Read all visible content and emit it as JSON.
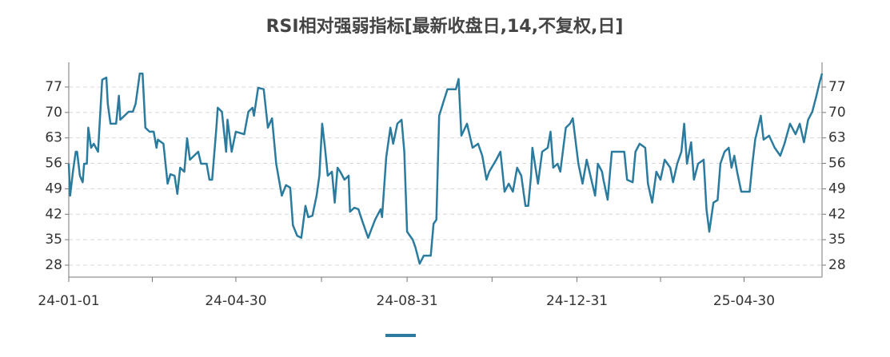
{
  "chart_data": {
    "type": "line",
    "title": "RSI相对强弱指标[最新收盘日,14,不复权,日]",
    "xlim": [
      "24-01-01",
      "25-06-25"
    ],
    "xticks": [
      "24-01-01",
      "24-04-30",
      "24-08-31",
      "24-12-31",
      "25-04-30"
    ],
    "ylim": [
      24.7,
      83.8
    ],
    "yticks": [
      28,
      35,
      42,
      49,
      56,
      63,
      70,
      77
    ],
    "grid": true,
    "right_axis": true,
    "series": [
      {
        "color": "#2b7b9e",
        "x": [
          "24-01-01",
          "24-01-02",
          "24-01-04",
          "24-01-06",
          "24-01-07",
          "24-01-09",
          "24-01-11",
          "24-01-12",
          "24-01-14",
          "24-01-15",
          "24-01-17",
          "24-01-19",
          "24-01-22",
          "24-01-25",
          "24-01-28",
          "24-01-29",
          "24-01-31",
          "24-02-04",
          "24-02-06",
          "24-02-07",
          "24-02-13",
          "24-02-16",
          "24-02-18",
          "24-02-21",
          "24-02-23",
          "24-02-25",
          "24-02-28",
          "24-03-02",
          "24-03-04",
          "24-03-05",
          "24-03-09",
          "24-03-12",
          "24-03-14",
          "24-03-17",
          "24-03-19",
          "24-03-21",
          "24-03-24",
          "24-03-26",
          "24-03-28",
          "24-03-31",
          "24-04-03",
          "24-04-05",
          "24-04-09",
          "24-04-11",
          "24-04-13",
          "24-04-16",
          "24-04-17",
          "24-04-20",
          "24-04-23",
          "24-04-24",
          "24-04-27",
          "24-04-30",
          "24-05-06",
          "24-05-09",
          "24-05-12",
          "24-05-13",
          "24-05-16",
          "24-05-20",
          "24-05-23",
          "24-05-26",
          "24-05-29",
          "24-06-02",
          "24-06-05",
          "24-06-08",
          "24-06-10",
          "24-06-13",
          "24-06-16",
          "24-06-19",
          "24-06-21",
          "24-06-24",
          "24-06-27",
          "24-06-29",
          "24-07-01",
          "24-07-03",
          "24-07-05",
          "24-07-08",
          "24-07-10",
          "24-07-12",
          "24-07-14",
          "24-07-17",
          "24-07-20",
          "24-07-21",
          "24-07-24",
          "24-07-27",
          "24-07-30",
          "24-08-03",
          "24-08-08",
          "24-08-12",
          "24-08-13",
          "24-08-16",
          "24-08-19",
          "24-08-21",
          "24-08-24",
          "24-08-27",
          "24-08-29",
          "24-08-31",
          "24-09-04",
          "24-09-06",
          "24-09-09",
          "24-09-12",
          "24-09-17",
          "24-09-19",
          "24-09-21",
          "24-09-23",
          "24-09-26",
          "24-09-29",
          "24-10-05",
          "24-10-07",
          "24-10-09",
          "24-10-13",
          "24-10-17",
          "24-10-21",
          "24-10-24",
          "24-10-27",
          "24-10-29",
          "24-11-03",
          "24-11-06",
          "24-11-09",
          "24-11-12",
          "24-11-15",
          "24-11-18",
          "24-11-21",
          "24-11-24",
          "24-11-26",
          "24-11-28",
          "24-11-29",
          "24-12-03",
          "24-12-06",
          "24-12-10",
          "24-12-12",
          "24-12-14",
          "24-12-17",
          "24-12-19",
          "24-12-23",
          "24-12-26",
          "24-12-28",
          "25-01-01",
          "25-01-04",
          "25-01-07",
          "25-01-11",
          "25-01-13",
          "25-01-15",
          "25-01-18",
          "25-01-19",
          "25-01-22",
          "25-01-25",
          "25-02-03",
          "25-02-05",
          "25-02-09",
          "25-02-11",
          "25-02-14",
          "25-02-18",
          "25-02-20",
          "25-02-23",
          "25-02-26",
          "25-03-01",
          "25-03-04",
          "25-03-08",
          "25-03-10",
          "25-03-13",
          "25-03-16",
          "25-03-18",
          "25-03-20",
          "25-03-23",
          "25-03-25",
          "25-03-28",
          "25-04-01",
          "25-04-03",
          "25-04-05",
          "25-04-08",
          "25-04-11",
          "25-04-13",
          "25-04-16",
          "25-04-19",
          "25-04-21",
          "25-04-23",
          "25-04-25",
          "25-04-28",
          "25-05-04",
          "25-05-06",
          "25-05-08",
          "25-05-12",
          "25-05-14",
          "25-05-18",
          "25-05-22",
          "25-05-26",
          "25-05-29",
          "25-06-02",
          "25-06-06",
          "25-06-09",
          "25-06-12",
          "25-06-15",
          "25-06-18",
          "25-06-21",
          "25-06-23",
          "25-06-25"
        ],
        "values": [
          55.9,
          47.1,
          53.7,
          59.2,
          59.2,
          52.6,
          50.8,
          55.9,
          55.9,
          65.8,
          60.3,
          61.4,
          59.2,
          79,
          79.6,
          72.4,
          66.9,
          66.9,
          74.6,
          68,
          70.2,
          70.2,
          72.4,
          80.7,
          80.7,
          65.8,
          64.7,
          64.7,
          60.3,
          62.5,
          61.4,
          50.4,
          53,
          52.6,
          47.6,
          54.8,
          53.7,
          62.9,
          57,
          58.1,
          59.2,
          55.9,
          55.9,
          51.5,
          51.5,
          65.8,
          71.3,
          70.2,
          59.2,
          68,
          59.2,
          64.7,
          64,
          70.2,
          71.3,
          69.1,
          76.8,
          76.4,
          65.8,
          68.4,
          55.9,
          47.1,
          50,
          49.3,
          39,
          36.1,
          35.5,
          44.3,
          41.2,
          41.6,
          47.1,
          52.6,
          66.9,
          60.3,
          52.6,
          53.7,
          45.2,
          54.8,
          53.7,
          51.5,
          52.6,
          42.7,
          43.8,
          43.4,
          39.9,
          35.5,
          40.5,
          43.4,
          41.2,
          57.7,
          65.8,
          61.4,
          66.9,
          68,
          59.2,
          37.2,
          35,
          32.8,
          28.4,
          30.6,
          30.6,
          39.4,
          40.5,
          69.1,
          72.8,
          76.4,
          76.4,
          79.2,
          63.6,
          66.9,
          60.3,
          61.4,
          58.1,
          51.5,
          53.7,
          57,
          59.2,
          48.2,
          50.4,
          48.2,
          54.8,
          52.6,
          44.3,
          44.3,
          52.6,
          60.3,
          50.4,
          59.2,
          60.3,
          64.7,
          54.8,
          55.9,
          53.7,
          65.8,
          66.9,
          68.4,
          55.9,
          50.4,
          57,
          50.4,
          47.1,
          55.9,
          53.7,
          51.5,
          46,
          59.2,
          59.2,
          51.5,
          50.8,
          59.2,
          61.4,
          60.3,
          50.4,
          45.2,
          53.7,
          51.5,
          57,
          54.8,
          50.8,
          55.9,
          59.2,
          66.9,
          55.9,
          61.8,
          51.5,
          55.9,
          57,
          43.4,
          37.2,
          45.2,
          45.9,
          55.9,
          59.2,
          60.3,
          54.8,
          58.1,
          53.7,
          48.2,
          48.2,
          55.9,
          62.5,
          69.1,
          62.5,
          63.6,
          60.3,
          58.1,
          61.4,
          66.9,
          64,
          66.9,
          61.8,
          68,
          70.2,
          74.6,
          77.9,
          80.7
        ]
      }
    ]
  }
}
